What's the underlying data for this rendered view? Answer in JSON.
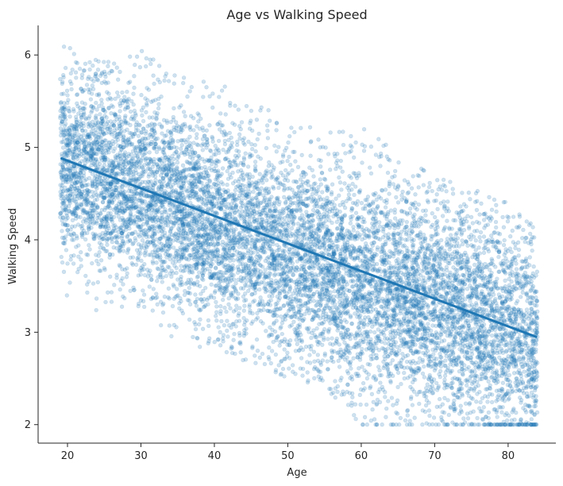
{
  "chart_data": {
    "type": "scatter",
    "title": "Age vs Walking Speed",
    "xlabel": "Age",
    "ylabel": "Walking Speed",
    "xlim": [
      16.0,
      86.5
    ],
    "ylim": [
      1.8,
      6.32
    ],
    "xticks": [
      "20",
      "30",
      "40",
      "50",
      "60",
      "70",
      "80"
    ],
    "yticks": [
      "2",
      "3",
      "4",
      "5",
      "6"
    ],
    "grid": false,
    "legend": "none",
    "point_color": "#1f77b4",
    "point_alpha": 0.22,
    "point_count_approx": 10000,
    "point_x_range": [
      19,
      84
    ],
    "point_y_floor": 2.0,
    "regression_line": {
      "x": [
        19.2,
        83.8
      ],
      "y": [
        4.88,
        2.95
      ]
    },
    "density_profile": [
      {
        "age": 20,
        "mean": 4.8,
        "spread": 0.45,
        "min": 3.3,
        "max": 6.1
      },
      {
        "age": 25,
        "mean": 4.75,
        "spread": 0.55,
        "min": 3.2,
        "max": 6.0
      },
      {
        "age": 30,
        "mean": 4.55,
        "spread": 0.55,
        "min": 3.2,
        "max": 6.05
      },
      {
        "age": 35,
        "mean": 4.4,
        "spread": 0.55,
        "min": 2.9,
        "max": 5.8
      },
      {
        "age": 40,
        "mean": 4.15,
        "spread": 0.55,
        "min": 2.8,
        "max": 5.7
      },
      {
        "age": 45,
        "mean": 4.05,
        "spread": 0.55,
        "min": 2.65,
        "max": 5.6
      },
      {
        "age": 50,
        "mean": 3.85,
        "spread": 0.55,
        "min": 2.5,
        "max": 5.3
      },
      {
        "age": 55,
        "mean": 3.75,
        "spread": 0.55,
        "min": 2.4,
        "max": 5.2
      },
      {
        "age": 60,
        "mean": 3.55,
        "spread": 0.6,
        "min": 2.0,
        "max": 5.3
      },
      {
        "age": 65,
        "mean": 3.45,
        "spread": 0.6,
        "min": 2.0,
        "max": 4.9
      },
      {
        "age": 70,
        "mean": 3.3,
        "spread": 0.6,
        "min": 2.0,
        "max": 4.7
      },
      {
        "age": 75,
        "mean": 3.15,
        "spread": 0.6,
        "min": 2.0,
        "max": 4.6
      },
      {
        "age": 80,
        "mean": 3.0,
        "spread": 0.6,
        "min": 2.0,
        "max": 4.4
      },
      {
        "age": 84,
        "mean": 2.9,
        "spread": 0.6,
        "min": 2.0,
        "max": 4.2
      }
    ]
  }
}
